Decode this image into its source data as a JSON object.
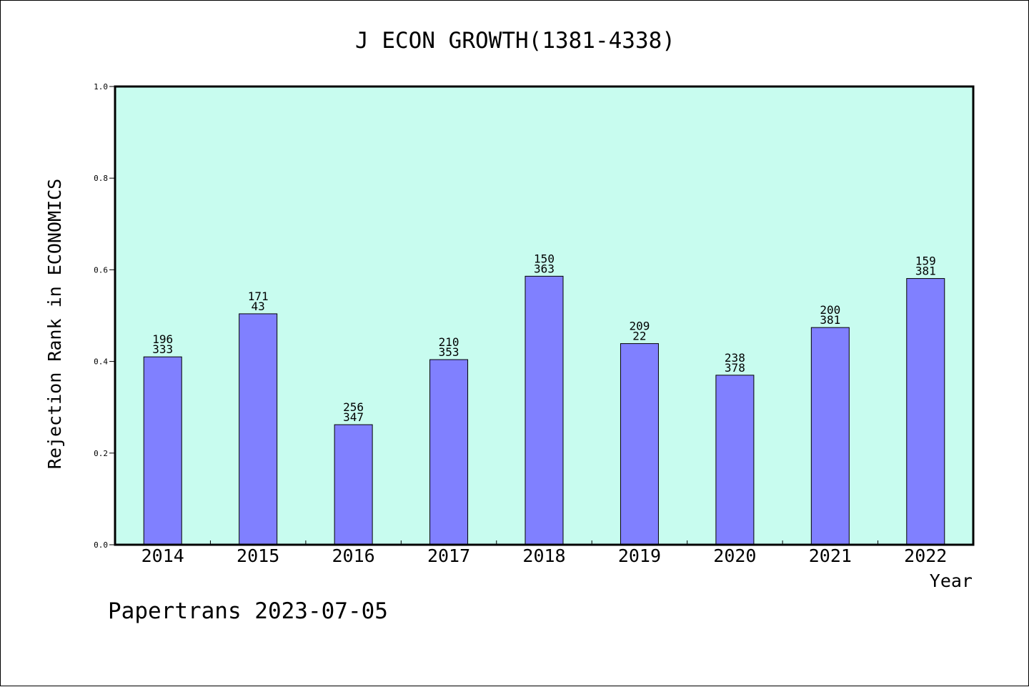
{
  "chart_data": {
    "type": "bar",
    "title": "J ECON GROWTH(1381-4338)",
    "xlabel": "Year",
    "ylabel": "Rejection Rank in ECONOMICS",
    "ylim": [
      0,
      1.0
    ],
    "yticks": [
      "0.0",
      "0.2",
      "0.4",
      "0.6",
      "0.8",
      "1.0"
    ],
    "grid": false,
    "categories": [
      "2014",
      "2015",
      "2016",
      "2017",
      "2018",
      "2019",
      "2020",
      "2021",
      "2022"
    ],
    "values": [
      0.41,
      0.504,
      0.262,
      0.404,
      0.586,
      0.439,
      0.37,
      0.474,
      0.581
    ],
    "labels_top": [
      "196",
      "171",
      "256",
      "210",
      "150",
      "209",
      "238",
      "200",
      "159"
    ],
    "labels_bottom": [
      "333",
      "43",
      "347",
      "353",
      "363",
      "22",
      "378",
      "381",
      "381"
    ],
    "colors": {
      "plot_background": "#c8fcef",
      "bar_fill": "#8080ff",
      "bar_stroke": "#000000"
    }
  },
  "footer": {
    "note": "Papertrans 2023-07-05"
  }
}
